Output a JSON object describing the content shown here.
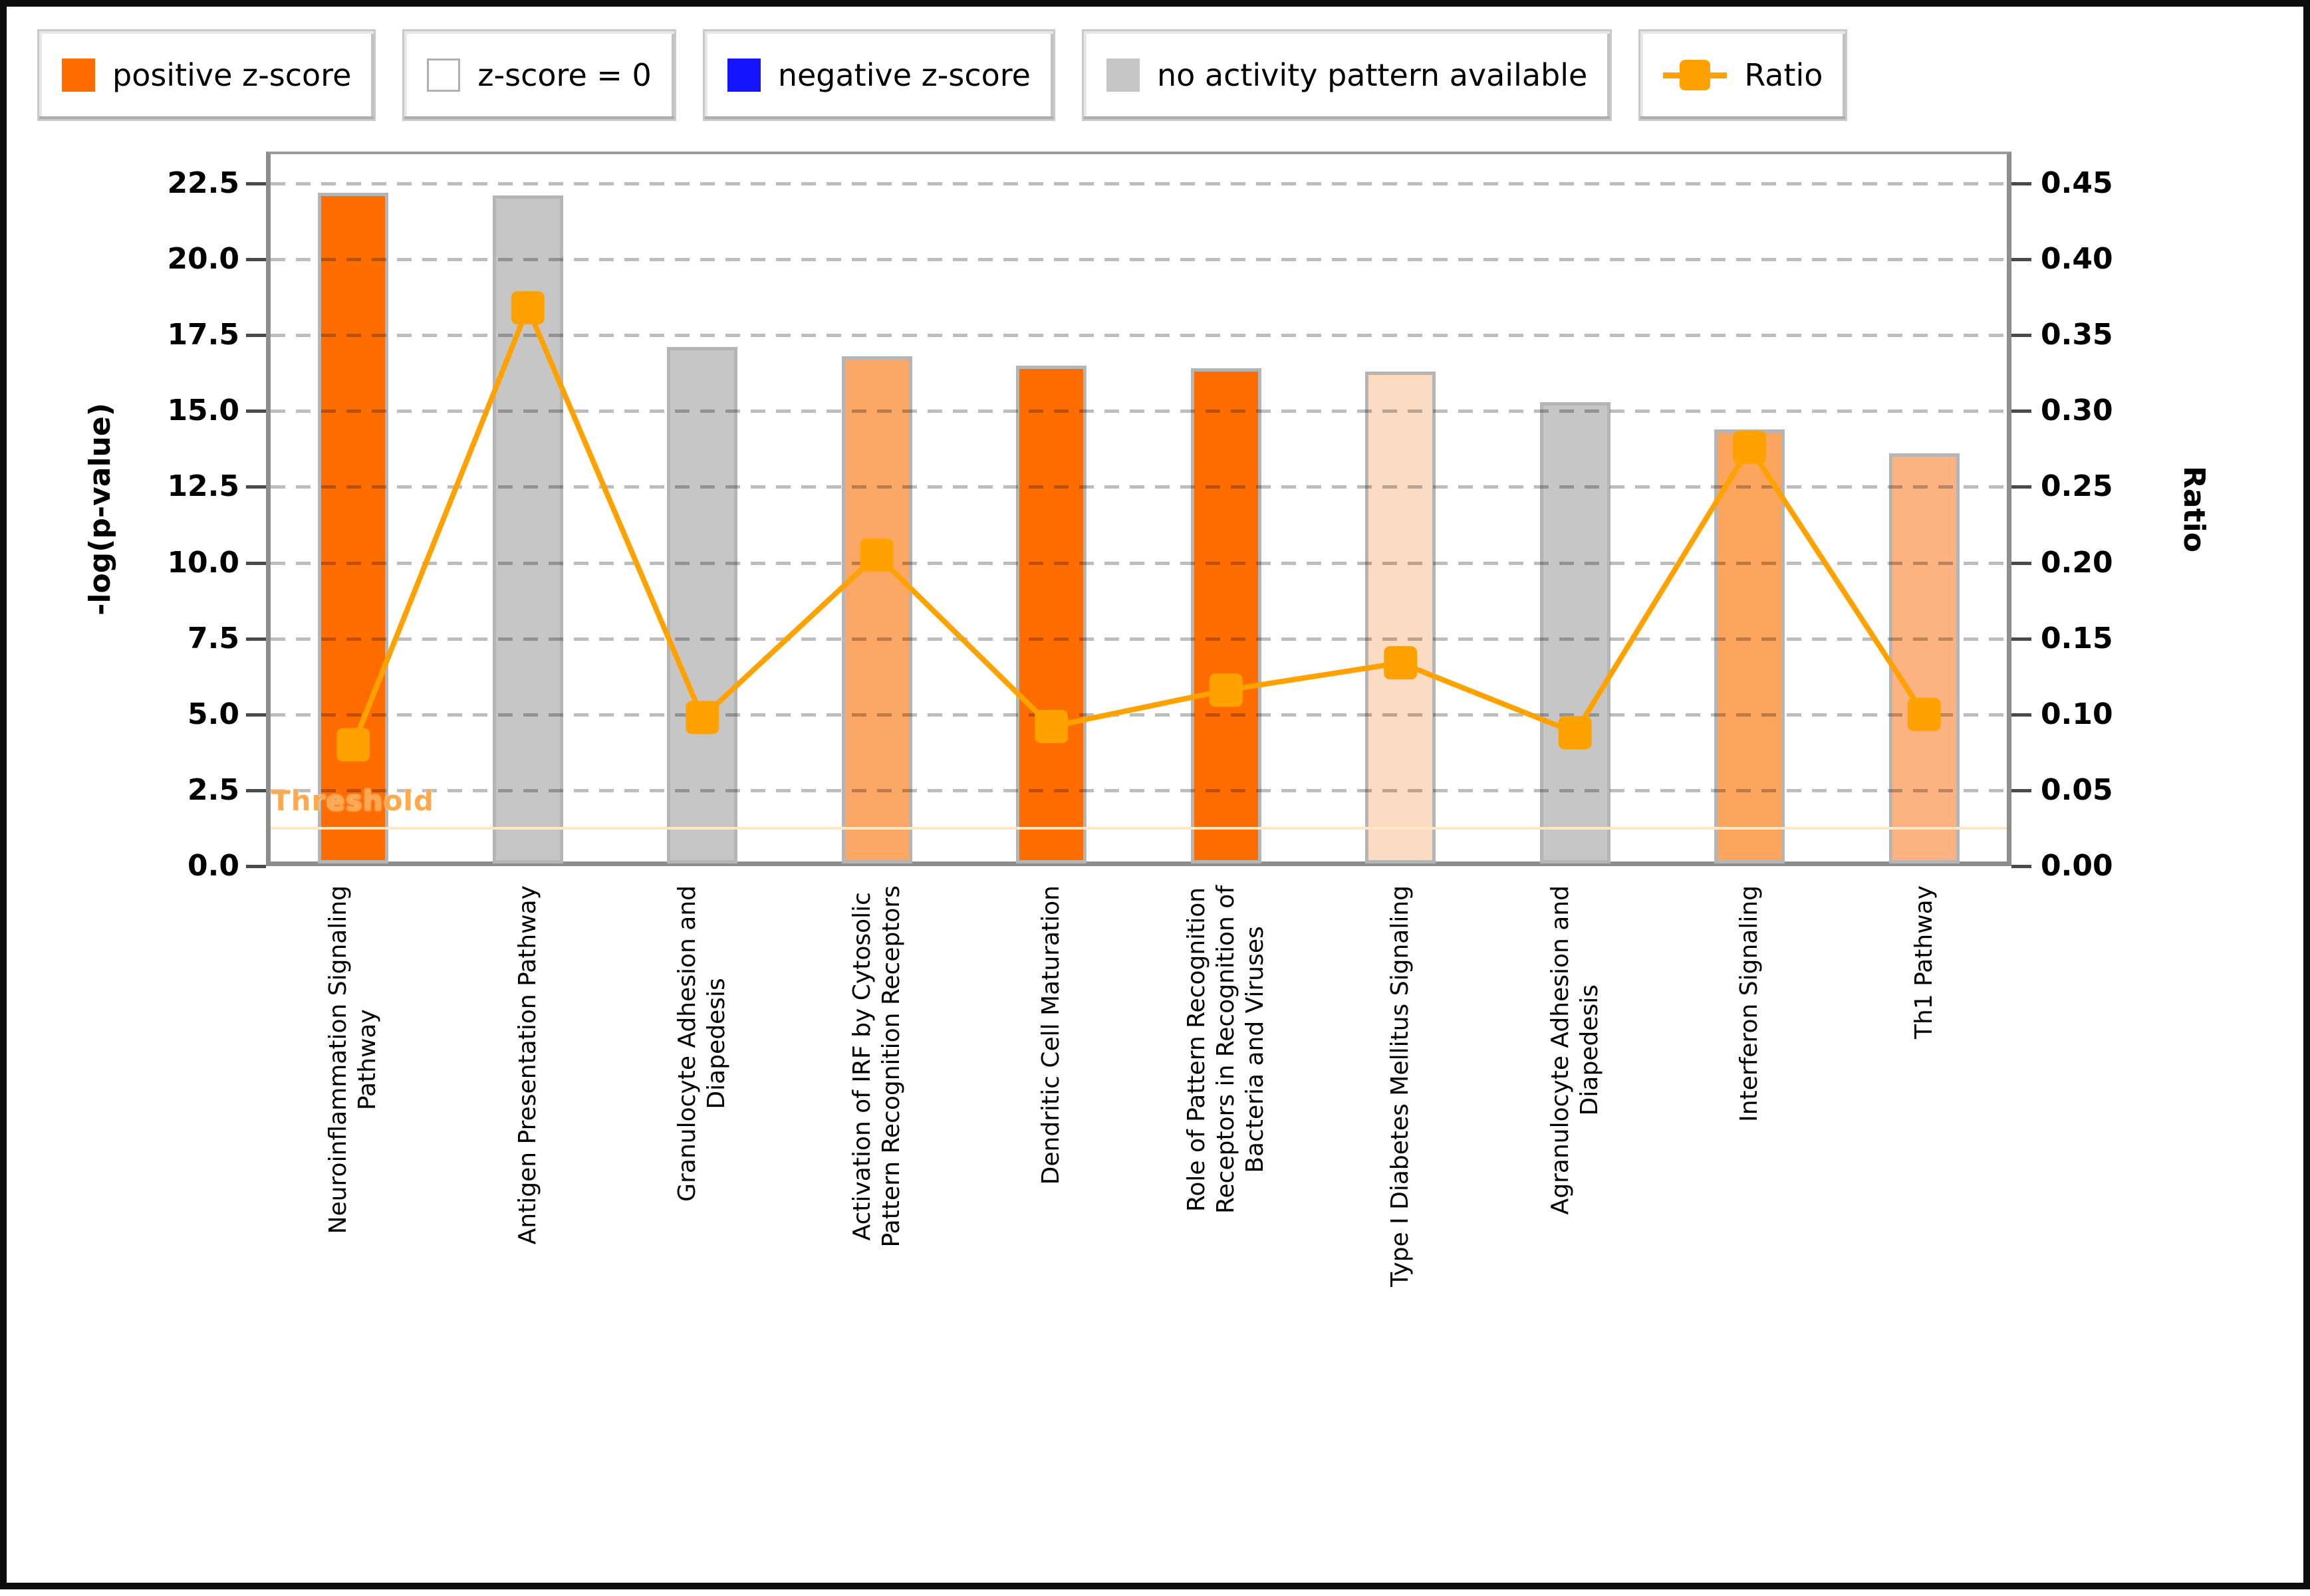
{
  "legend": {
    "items": [
      {
        "label": "positive z-score",
        "swatch": "square",
        "color": "#ff6c00"
      },
      {
        "label": "z-score = 0",
        "swatch": "square-white",
        "color": "#ffffff"
      },
      {
        "label": "negative z-score",
        "swatch": "square",
        "color": "#1414ff"
      },
      {
        "label": "no activity pattern available",
        "swatch": "square",
        "color": "#c6c6c6"
      },
      {
        "label": "Ratio",
        "swatch": "line-square",
        "color": "#ffa200"
      }
    ]
  },
  "chart_data": {
    "type": "bar",
    "subtype": "bar+line combo, dual y-axes",
    "categories_lines": [
      [
        "Neuroinflammation Signaling",
        "Pathway"
      ],
      [
        "Antigen Presentation Pathway"
      ],
      [
        "Granulocyte Adhesion and",
        "Diapedesis"
      ],
      [
        "Activation of IRF by Cytosolic",
        "Pattern Recognition Receptors"
      ],
      [
        "Dendritic Cell Maturation"
      ],
      [
        "Role of Pattern Recognition",
        "Receptors in Recognition of",
        "Bacteria and Viruses"
      ],
      [
        "Type I Diabetes Mellitus Signaling"
      ],
      [
        "Agranulocyte Adhesion and",
        "Diapedesis"
      ],
      [
        "Interferon Signaling"
      ],
      [
        "Th1 Pathway"
      ]
    ],
    "series": [
      {
        "name": "-log(p-value)",
        "type": "bar",
        "axis": "left",
        "values": [
          22.2,
          22.1,
          17.1,
          16.8,
          16.5,
          16.4,
          16.3,
          15.3,
          14.4,
          13.6
        ],
        "bar_colors": [
          "#ff6c00",
          "#c6c6c6",
          "#c6c6c6",
          "#fca766",
          "#ff6c00",
          "#ff6c00",
          "#fbdcc2",
          "#c6c6c6",
          "#fca55e",
          "#fcb381"
        ],
        "bar_border_color": "#b5b5b5"
      },
      {
        "name": "Ratio",
        "type": "line",
        "axis": "right",
        "values": [
          0.08,
          0.368,
          0.098,
          0.205,
          0.092,
          0.116,
          0.134,
          0.088,
          0.276,
          0.1
        ],
        "color": "#ffa200",
        "marker": "square"
      }
    ],
    "left_axis": {
      "label": "-log(p-value)",
      "min": 0,
      "max": 23.55,
      "ticks": [
        "0.0",
        "2.5",
        "5.0",
        "7.5",
        "10.0",
        "12.5",
        "15.0",
        "17.5",
        "20.0",
        "22.5"
      ]
    },
    "right_axis": {
      "label": "Ratio",
      "min": 0,
      "max": 0.471,
      "ticks": [
        "0.00",
        "0.05",
        "0.10",
        "0.15",
        "0.20",
        "0.25",
        "0.30",
        "0.35",
        "0.40",
        "0.45"
      ]
    },
    "threshold": {
      "label": "Threshold",
      "value": 1.3,
      "line_color": "#ffe7c4",
      "label_color": "#ffa94e"
    },
    "grid": {
      "horizontal_every": 2.5,
      "style": "dashed",
      "color": "#bdbdbd"
    },
    "legend_position": "top"
  }
}
